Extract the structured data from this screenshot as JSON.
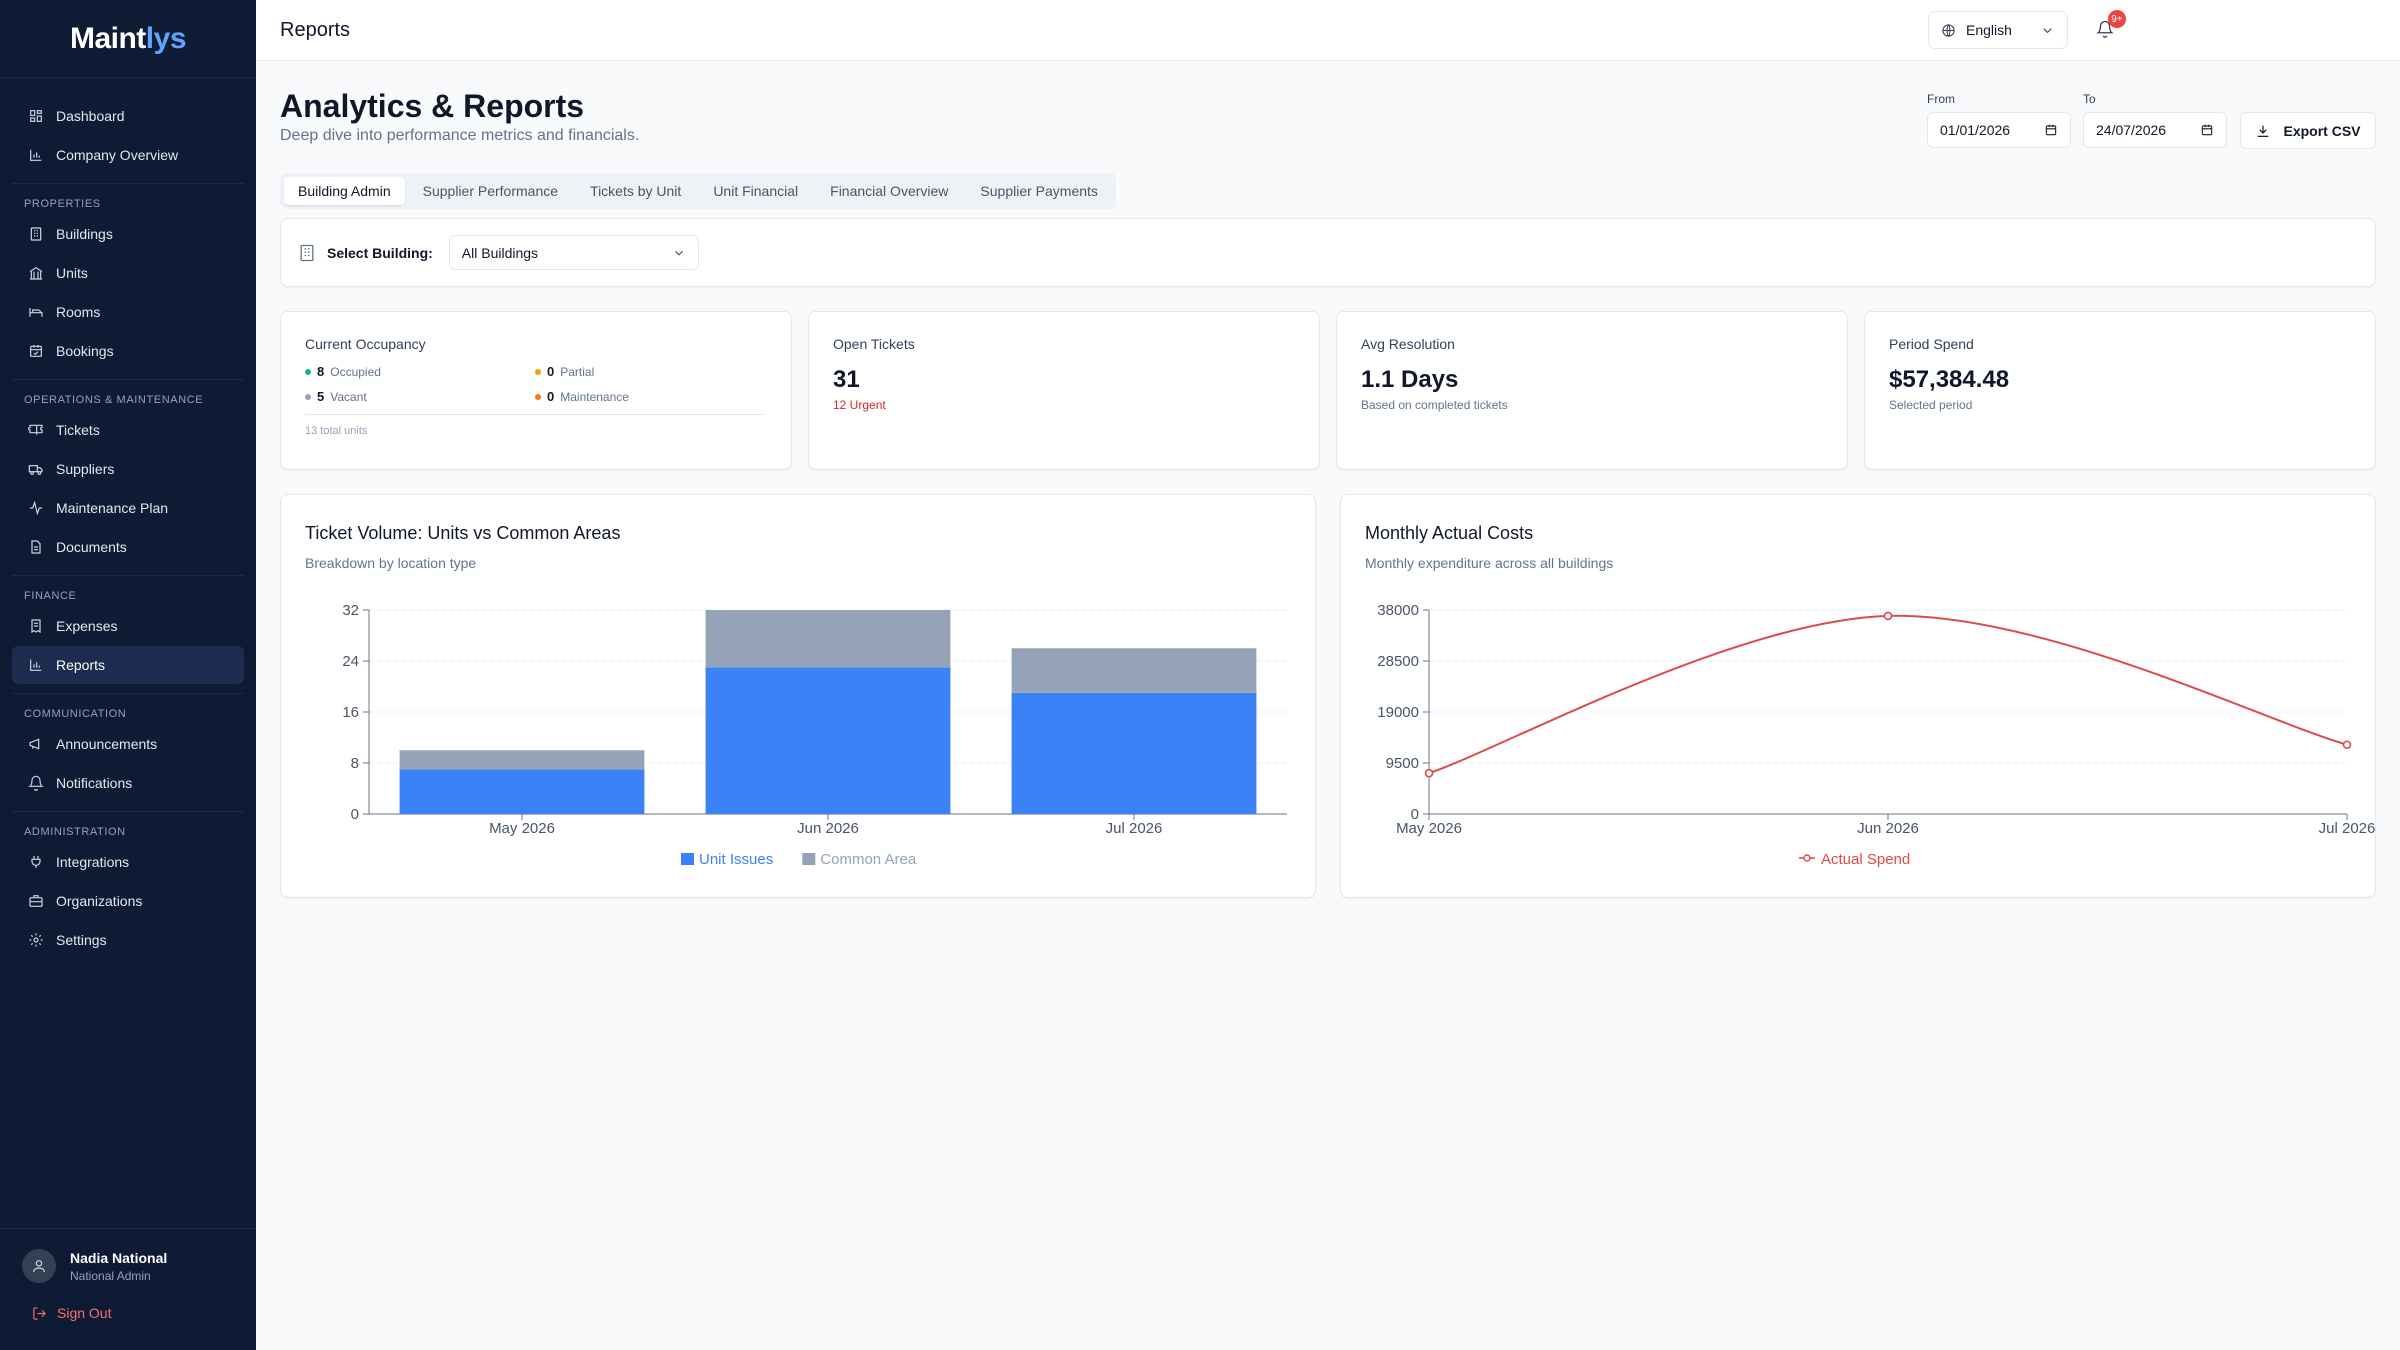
{
  "brand": {
    "name_main": "Maint",
    "name_accent": "lys"
  },
  "sidebar": {
    "groups": [
      {
        "section": "",
        "items": [
          {
            "label": "Dashboard",
            "icon": "grid-icon"
          },
          {
            "label": "Company Overview",
            "icon": "bar-chart-icon"
          }
        ]
      },
      {
        "section": "PROPERTIES",
        "items": [
          {
            "label": "Buildings",
            "icon": "building-icon"
          },
          {
            "label": "Units",
            "icon": "landmark-icon"
          },
          {
            "label": "Rooms",
            "icon": "bed-icon"
          },
          {
            "label": "Bookings",
            "icon": "calendar-check-icon"
          }
        ]
      },
      {
        "section": "OPERATIONS & MAINTENANCE",
        "items": [
          {
            "label": "Tickets",
            "icon": "ticket-icon"
          },
          {
            "label": "Suppliers",
            "icon": "truck-icon"
          },
          {
            "label": "Maintenance Plan",
            "icon": "activity-icon"
          },
          {
            "label": "Documents",
            "icon": "file-icon"
          }
        ]
      },
      {
        "section": "FINANCE",
        "items": [
          {
            "label": "Expenses",
            "icon": "receipt-icon"
          },
          {
            "label": "Reports",
            "icon": "bar-chart-icon",
            "active": true
          }
        ]
      },
      {
        "section": "COMMUNICATION",
        "items": [
          {
            "label": "Announcements",
            "icon": "megaphone-icon"
          },
          {
            "label": "Notifications",
            "icon": "bell-icon"
          }
        ]
      },
      {
        "section": "ADMINISTRATION",
        "items": [
          {
            "label": "Integrations",
            "icon": "plug-icon"
          },
          {
            "label": "Organizations",
            "icon": "briefcase-icon"
          },
          {
            "label": "Settings",
            "icon": "gear-icon"
          }
        ]
      }
    ]
  },
  "user": {
    "name": "Nadia National",
    "role": "National Admin",
    "signout": "Sign Out"
  },
  "topbar": {
    "title": "Reports",
    "language": "English",
    "notification_badge": "9+"
  },
  "header": {
    "title": "Analytics & Reports",
    "subtitle": "Deep dive into performance metrics and financials."
  },
  "dates": {
    "from_label": "From",
    "from_value": "01/01/2026",
    "to_label": "To",
    "to_value": "24/07/2026"
  },
  "export_label": "Export CSV",
  "tabs": [
    "Building Admin",
    "Supplier Performance",
    "Tickets by Unit",
    "Unit Financial",
    "Financial Overview",
    "Supplier Payments"
  ],
  "filter": {
    "label": "Select Building:",
    "value": "All Buildings"
  },
  "stats": {
    "occupancy": {
      "label": "Current Occupancy",
      "occupied": "8",
      "occupied_label": "Occupied",
      "partial": "0",
      "partial_label": "Partial",
      "vacant": "5",
      "vacant_label": "Vacant",
      "maintenance": "0",
      "maintenance_label": "Maintenance",
      "total": "13 total units"
    },
    "open_tickets": {
      "label": "Open Tickets",
      "value": "31",
      "sub": "12 Urgent"
    },
    "avg_resolution": {
      "label": "Avg Resolution",
      "value": "1.1 Days",
      "sub": "Based on completed tickets"
    },
    "period_spend": {
      "label": "Period Spend",
      "value": "$57,384.48",
      "sub": "Selected period"
    }
  },
  "colors": {
    "unit_issues": "#3b82f6",
    "common_area": "#94a3b8",
    "actual_spend": "#dc4a4a",
    "occupied": "#10b981",
    "partial": "#f59e0b",
    "vacant": "#94a3b8",
    "maintenance": "#f97316"
  },
  "chart_data": [
    {
      "type": "bar",
      "stacked": true,
      "title": "Ticket Volume: Units vs Common Areas",
      "subtitle": "Breakdown by location type",
      "categories": [
        "May 2026",
        "Jun 2026",
        "Jul 2026"
      ],
      "series": [
        {
          "name": "Unit Issues",
          "values": [
            7,
            23,
            19
          ]
        },
        {
          "name": "Common Area",
          "values": [
            3,
            9,
            7
          ]
        }
      ],
      "yticks": [
        0,
        8,
        16,
        24,
        32
      ],
      "ylim": [
        0,
        32
      ],
      "grid": true,
      "legend": "bottom"
    },
    {
      "type": "line",
      "title": "Monthly Actual Costs",
      "subtitle": "Monthly expenditure across all buildings",
      "categories": [
        "May 2026",
        "Jun 2026",
        "Jul 2026"
      ],
      "series": [
        {
          "name": "Actual Spend",
          "values": [
            7600,
            36900,
            12900
          ]
        }
      ],
      "yticks": [
        0,
        9500,
        19000,
        28500,
        38000
      ],
      "ylim": [
        0,
        38000
      ],
      "grid": true,
      "legend": "bottom"
    }
  ]
}
